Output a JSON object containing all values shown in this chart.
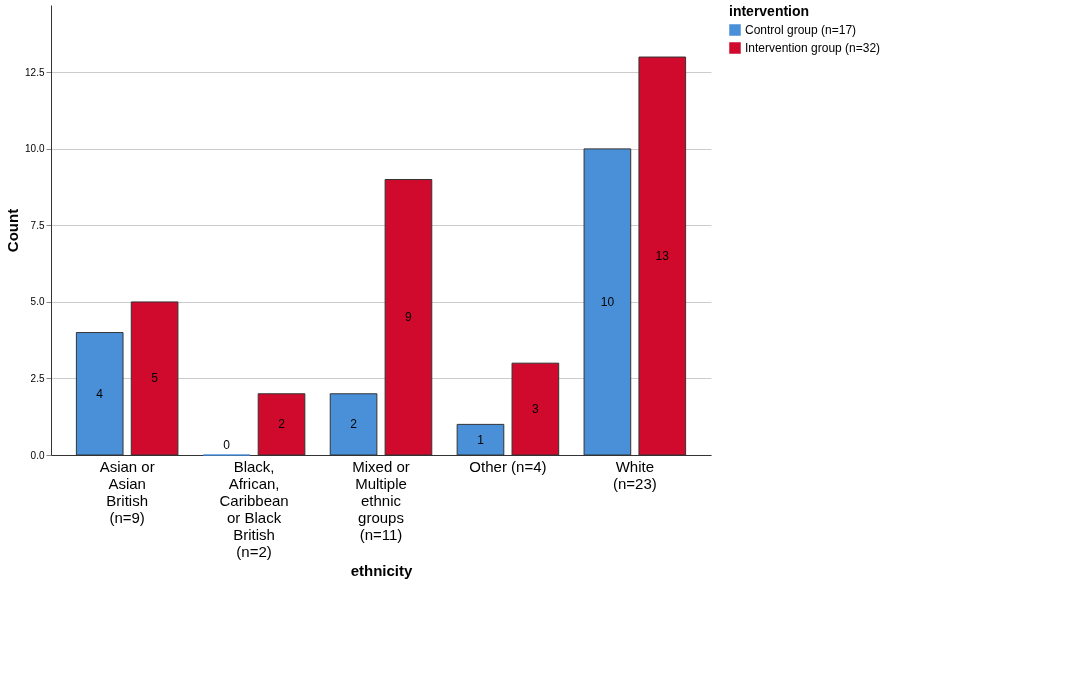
{
  "chart_data": {
    "type": "bar",
    "xlabel": "ethnicity",
    "ylabel": "Count",
    "legend_title": "intervention",
    "categories": [
      "Asian or Asian British (n=9)",
      "Black, African, Caribbean or Black British (n=2)",
      "Mixed or Multiple ethnic groups (n=11)",
      "Other (n=4)",
      "White (n=23)"
    ],
    "series": [
      {
        "name": "Control group (n=17)",
        "color": "#4a90d9",
        "values": [
          4,
          0,
          2,
          1,
          10
        ]
      },
      {
        "name": "Intervention group (n=32)",
        "color": "#cf0a2c",
        "values": [
          5,
          2,
          9,
          3,
          13
        ]
      }
    ],
    "ylim": [
      0,
      14.7
    ],
    "yticks": [
      {
        "value": 0,
        "label": "0.0"
      },
      {
        "value": 2.5,
        "label": "2.5"
      },
      {
        "value": 5,
        "label": "5.0"
      },
      {
        "value": 7.5,
        "label": "7.5"
      },
      {
        "value": 10,
        "label": "10.0"
      },
      {
        "value": 12.5,
        "label": "12.5"
      }
    ],
    "grid": "y",
    "legend": "right",
    "data_labels": true
  }
}
